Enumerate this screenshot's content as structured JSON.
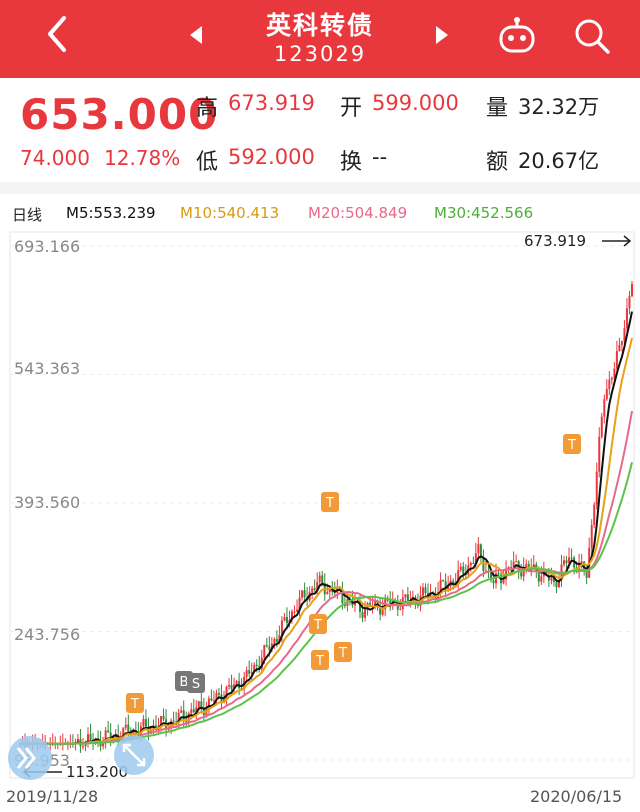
{
  "header": {
    "title": "英科转债",
    "code": "123029",
    "bg_color": "#e8383d"
  },
  "quote": {
    "price": "653.000",
    "change": "74.000",
    "change_pct": "12.78%",
    "high_label": "高",
    "high": "673.919",
    "open_label": "开",
    "open": "599.000",
    "volume_label": "量",
    "volume": "32.32万",
    "low_label": "低",
    "low": "592.000",
    "turnover_label": "换",
    "turnover": "--",
    "amount_label": "额",
    "amount": "20.67亿"
  },
  "legend": {
    "period": "日线",
    "m5": "M5:553.239",
    "m10": "M10:540.413",
    "m20": "M20:504.849",
    "m30": "M30:452.566",
    "m5_color": "#111111",
    "m10_color": "#e6a214",
    "m20_color": "#e66a8a",
    "m30_color": "#5cc24a"
  },
  "chart_data": {
    "type": "candlestick",
    "y_ticks": [
      "693.166",
      "543.363",
      "393.560",
      "243.756",
      "93.953"
    ],
    "ylim": [
      93.953,
      693.166
    ],
    "max_label": "673.919",
    "min_label": "113.200",
    "x_start": "2019/11/28",
    "x_end": "2020/06/15",
    "markers": [
      {
        "text": "T",
        "kind": "trade"
      },
      {
        "text": "B",
        "kind": "buy"
      },
      {
        "text": "S",
        "kind": "sell"
      }
    ]
  }
}
